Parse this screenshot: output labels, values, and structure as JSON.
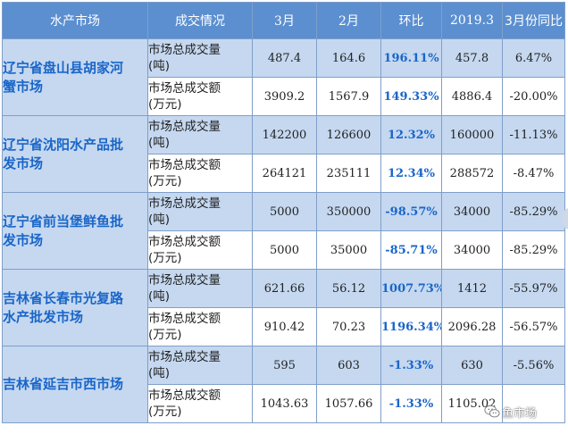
{
  "headers": [
    "水产市场",
    "成交情况",
    "3月",
    "2月",
    "环比",
    "2019.3",
    "3月份同比"
  ],
  "metrics": {
    "volume": [
      "市场总成交量",
      "(吨)"
    ],
    "amount": [
      "市场总成交额",
      "(万元)"
    ]
  },
  "markets": [
    {
      "name": "辽宁省盘山县胡家河蟹市场",
      "name_lines": [
        "辽宁省盘山县胡家河",
        "蟹市场"
      ],
      "volume": {
        "mar": "487.4",
        "feb": "164.6",
        "mom": "196.11%",
        "y2019": "457.8",
        "yoy": "6.47%"
      },
      "amount": {
        "mar": "3909.2",
        "feb": "1567.9",
        "mom": "149.33%",
        "y2019": "4886.4",
        "yoy": "-20.00%"
      }
    },
    {
      "name": "辽宁省沈阳水产品批发市场",
      "name_lines": [
        "辽宁省沈阳水产品批",
        "发市场"
      ],
      "volume": {
        "mar": "142200",
        "feb": "126600",
        "mom": "12.32%",
        "y2019": "160000",
        "yoy": "-11.13%"
      },
      "amount": {
        "mar": "264121",
        "feb": "235111",
        "mom": "12.34%",
        "y2019": "288572",
        "yoy": "-8.47%"
      }
    },
    {
      "name": "辽宁省前当堡鲜鱼批发市场",
      "name_lines": [
        "辽宁省前当堡鲜鱼批",
        "发市场"
      ],
      "volume": {
        "mar": "5000",
        "feb": "350000",
        "mom": "-98.57%",
        "y2019": "34000",
        "yoy": "-85.29%"
      },
      "amount": {
        "mar": "5000",
        "feb": "35000",
        "mom": "-85.71%",
        "y2019": "34000",
        "yoy": "-85.29%"
      }
    },
    {
      "name": "吉林省长春市光复路水产批发市场",
      "name_lines": [
        "吉林省长春市光复路",
        "水产批发市场"
      ],
      "volume": {
        "mar": "621.66",
        "feb": "56.12",
        "mom": "1007.73%",
        "y2019": "1412",
        "yoy": "-55.97%"
      },
      "amount": {
        "mar": "910.42",
        "feb": "70.23",
        "mom": "1196.34%",
        "y2019": "2096.28",
        "yoy": "-56.57%"
      }
    },
    {
      "name": "吉林省延吉市西市场",
      "name_lines": [
        "吉林省延吉市西市场"
      ],
      "volume": {
        "mar": "595",
        "feb": "603",
        "mom": "-1.33%",
        "y2019": "630",
        "yoy": "-5.56%"
      },
      "amount": {
        "mar": "1043.63",
        "feb": "1057.66",
        "mom": "-1.33%",
        "y2019": "1105.02",
        "yoy": ""
      }
    }
  ],
  "watermark": {
    "text": "鱼市场",
    "icon": "wechat-icon"
  }
}
